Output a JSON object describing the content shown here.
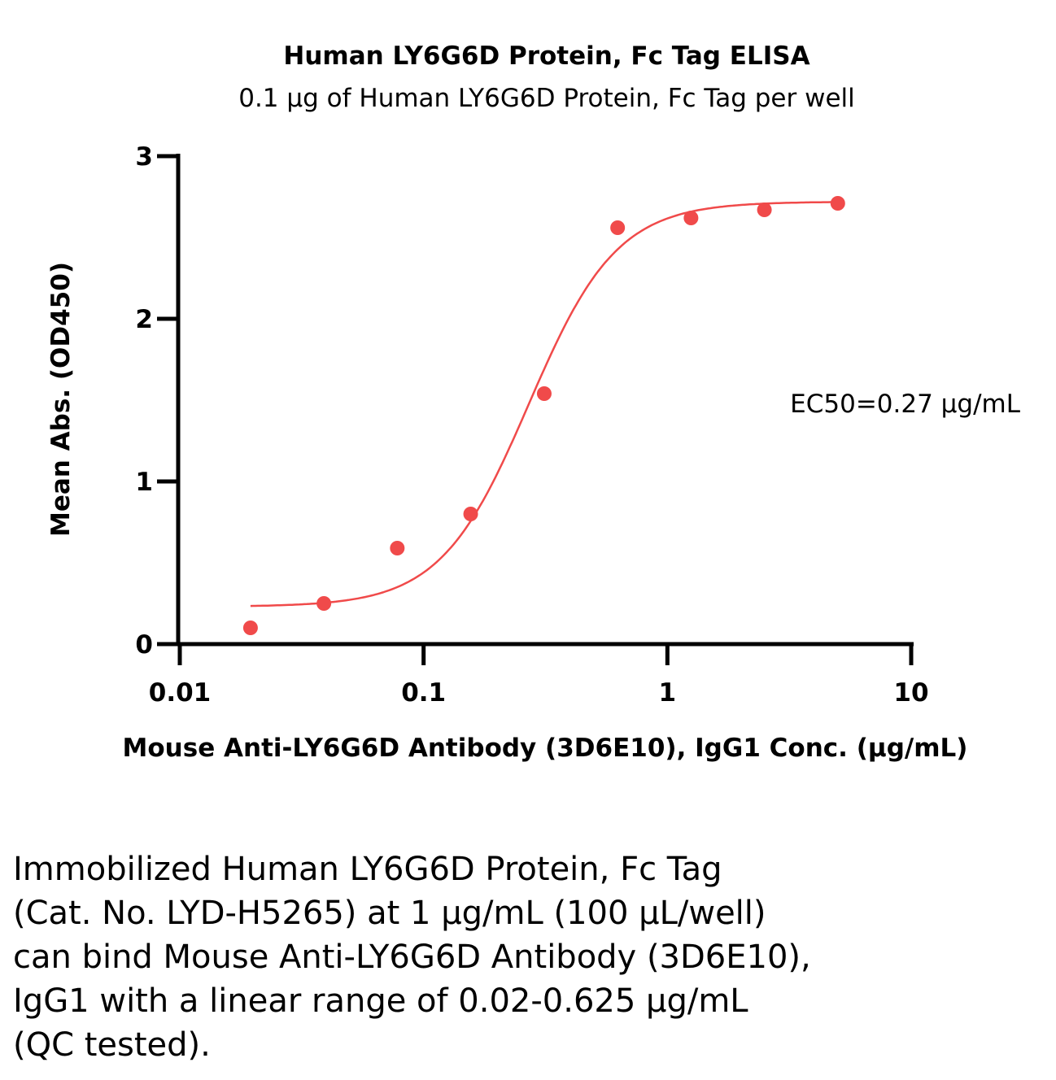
{
  "chart_data": {
    "type": "scatter",
    "title": "Human LY6G6D Protein, Fc Tag ELISA",
    "subtitle": "0.1 μg of Human LY6G6D Protein, Fc Tag per well",
    "xlabel": "Mouse Anti-LY6G6D Antibody (3D6E10), IgG1 Conc. (μg/mL)",
    "ylabel": "Mean Abs. (OD450)",
    "x_scale": "log",
    "xlim": [
      0.01,
      10
    ],
    "ylim": [
      0,
      3
    ],
    "x_ticks": [
      "0.01",
      "0.1",
      "1",
      "10"
    ],
    "y_ticks": [
      "0",
      "1",
      "2",
      "3"
    ],
    "annotation": "EC50=0.27 μg/mL",
    "color": "#f04a4a",
    "grid": false,
    "series": [
      {
        "x": [
          0.0195,
          0.039,
          0.078,
          0.156,
          0.3125,
          0.625,
          1.25,
          2.5,
          5.0
        ],
        "y": [
          0.1,
          0.25,
          0.59,
          0.8,
          1.54,
          2.56,
          2.62,
          2.67,
          2.71
        ]
      }
    ],
    "fit": {
      "bottom": 0.23,
      "top": 2.72,
      "ec50": 0.27,
      "hill": 2.4,
      "x_range": [
        0.0195,
        5.0
      ]
    }
  },
  "caption": {
    "lines": [
      "Immobilized Human LY6G6D Protein, Fc Tag",
      "(Cat. No. LYD-H5265) at 1 μg/mL (100 μL/well)",
      "can bind Mouse Anti-LY6G6D Antibody (3D6E10),",
      "IgG1 with a linear range of 0.02-0.625 μg/mL",
      "(QC tested)."
    ]
  }
}
